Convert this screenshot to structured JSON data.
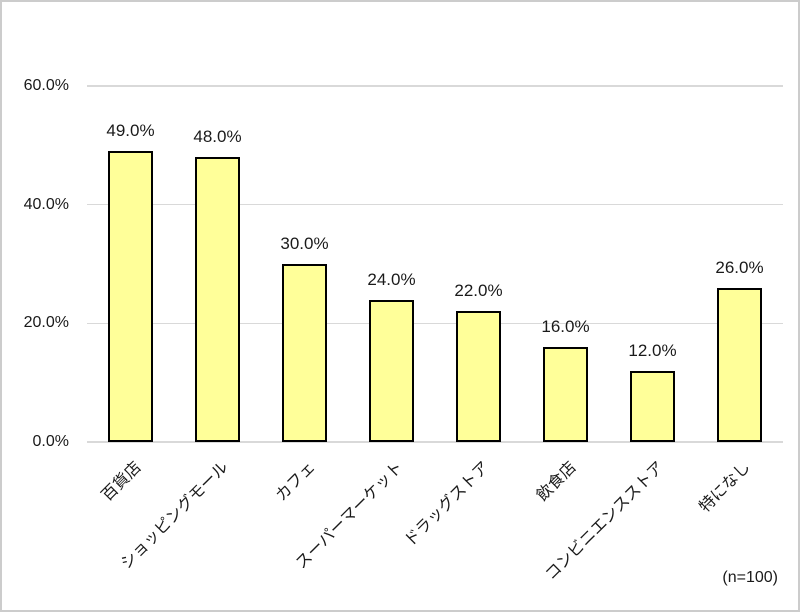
{
  "chart_data": {
    "type": "bar",
    "title": "",
    "categories": [
      "百貨店",
      "ショッピングモール",
      "カフェ",
      "スーパーマーケット",
      "ドラッグストア",
      "飲食店",
      "コンビニエンスストア",
      "特になし"
    ],
    "values": [
      49.0,
      48.0,
      30.0,
      24.0,
      22.0,
      16.0,
      12.0,
      26.0
    ],
    "data_labels": [
      "49.0%",
      "48.0%",
      "30.0%",
      "24.0%",
      "22.0%",
      "16.0%",
      "12.0%",
      "26.0%"
    ],
    "y_ticks": [
      {
        "value": 0,
        "label": "0.0%"
      },
      {
        "value": 20,
        "label": "20.0%"
      },
      {
        "value": 40,
        "label": "40.0%"
      },
      {
        "value": 60,
        "label": "60.0%"
      }
    ],
    "ylim": [
      0,
      60
    ],
    "xlabel": "",
    "ylabel": "",
    "grid": true,
    "legend": false,
    "note": "(n=100)",
    "colors": {
      "bar_fill": "#FFFF99",
      "bar_border": "#000000",
      "gridline": "#D9D9D9",
      "text": "#1A1A1A",
      "frame_border": "#CCCCCC",
      "background": "#FFFFFF"
    }
  }
}
